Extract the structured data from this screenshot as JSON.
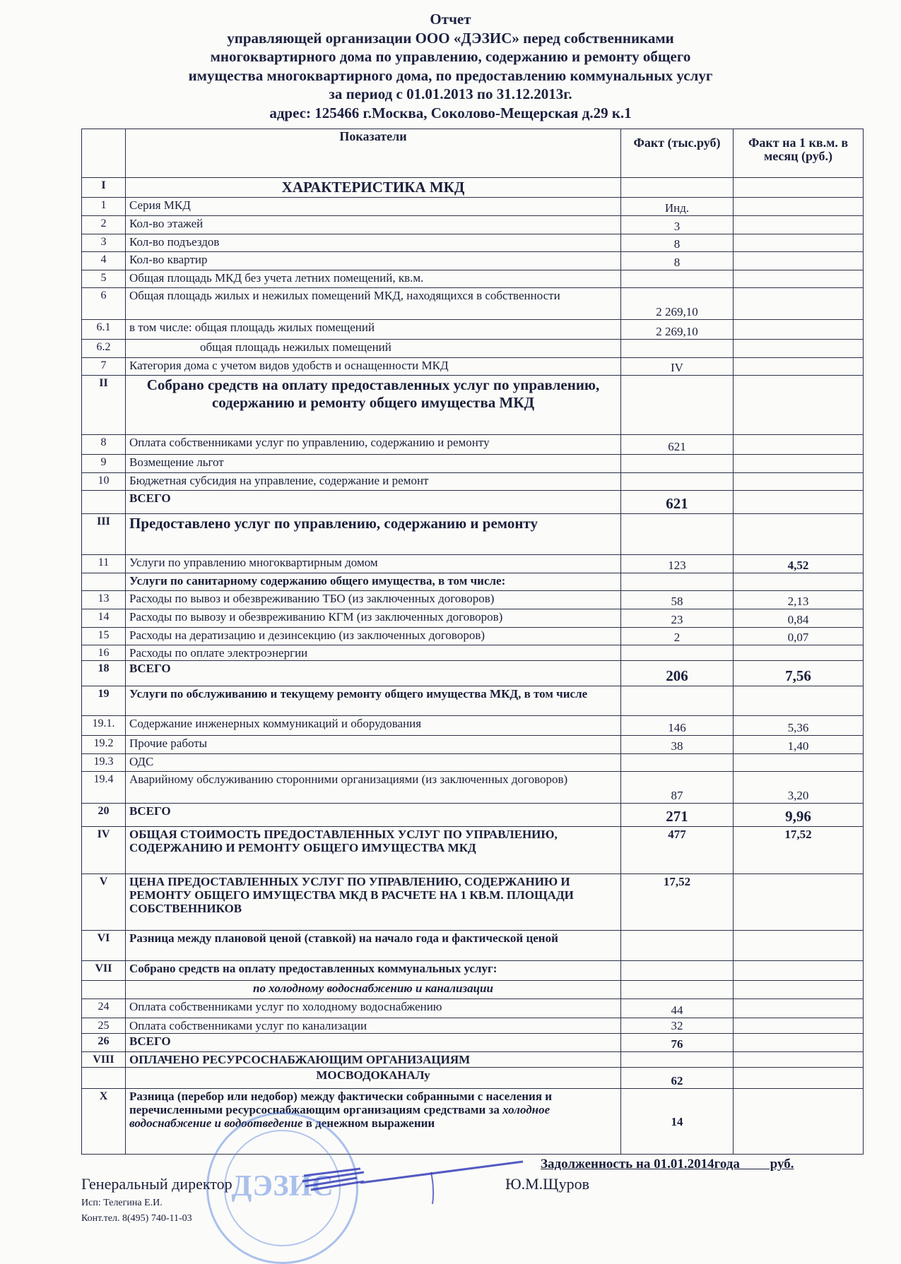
{
  "header": {
    "title": "Отчет",
    "lines": [
      "управляющей организации ООО «ДЭЗИС» перед собственниками",
      "многоквартирного дома  по управлению, содержанию и ремонту общего",
      "имущества многоквартирного дома, по предоставлению коммунальных услуг",
      "за период  с 01.01.2013 по 31.12.2013г.",
      "адрес: 125466 г.Москва, Соколово-Мещерская д.29 к.1"
    ]
  },
  "table": {
    "columns": [
      "",
      "Показатели",
      "Факт (тыс.руб)",
      "Факт на 1 кв.м. в месяц (руб.)"
    ],
    "rows": [
      {
        "num": "I",
        "label": "ХАРАКТЕРИСТИКА МКД",
        "fact": "",
        "per_m2": ""
      },
      {
        "num": "1",
        "label": "Серия МКД",
        "fact": "Инд.",
        "per_m2": ""
      },
      {
        "num": "2",
        "label": "Кол-во этажей",
        "fact": "3",
        "per_m2": ""
      },
      {
        "num": "3",
        "label": "Кол-во подъездов",
        "fact": "8",
        "per_m2": ""
      },
      {
        "num": "4",
        "label": "Кол-во квартир",
        "fact": "8",
        "per_m2": ""
      },
      {
        "num": "5",
        "label": "Общая площадь МКД без учета летних помещений, кв.м.",
        "fact": "",
        "per_m2": ""
      },
      {
        "num": "6",
        "label": "Общая площадь жилых и нежилых помещений МКД, находящихся в собственности",
        "fact": "2 269,10",
        "per_m2": ""
      },
      {
        "num": "6.1",
        "label": "в том числе: общая площадь жилых помещений",
        "fact": "2 269,10",
        "per_m2": ""
      },
      {
        "num": "6.2",
        "label": "общая площадь нежилых помещений",
        "fact": "",
        "per_m2": ""
      },
      {
        "num": "7",
        "label": "Категория дома с учетом видов удобств и оснащенности МКД",
        "fact": "IV",
        "per_m2": ""
      },
      {
        "num": "II",
        "label": "Собрано средств на оплату предоставленных услуг по управлению, содержанию и ремонту общего имущества МКД",
        "fact": "",
        "per_m2": ""
      },
      {
        "num": "8",
        "label": "Оплата собственниками услуг по управлению, содержанию и ремонту",
        "fact": "621",
        "per_m2": ""
      },
      {
        "num": "9",
        "label": "Возмещение льгот",
        "fact": "",
        "per_m2": ""
      },
      {
        "num": "10",
        "label": "Бюджетная субсидия на управление, содержание и ремонт",
        "fact": "",
        "per_m2": ""
      },
      {
        "num": "",
        "label": "ВСЕГО",
        "fact": "621",
        "per_m2": ""
      },
      {
        "num": "III",
        "label": "Предоставлено услуг по управлению, содержанию и ремонту",
        "fact": "",
        "per_m2": ""
      },
      {
        "num": "11",
        "label": "Услуги по управлению многоквартирным домом",
        "fact": "123",
        "per_m2": "4,52"
      },
      {
        "num": "",
        "label": "Услуги по санитарному содержанию общего имущества, в том числе:",
        "fact": "",
        "per_m2": ""
      },
      {
        "num": "13",
        "label": "Расходы по вывоз и обезвреживанию ТБО (из заключенных договоров)",
        "fact": "58",
        "per_m2": "2,13"
      },
      {
        "num": "14",
        "label": "Расходы по вывозу и обезвреживанию КГМ (из заключенных договоров)",
        "fact": "23",
        "per_m2": "0,84"
      },
      {
        "num": "15",
        "label": "Расходы на  дератизацию и дезинсекцию (из заключенных договоров)",
        "fact": "2",
        "per_m2": "0,07"
      },
      {
        "num": "16",
        "label": "Расходы по оплате электроэнергии",
        "fact": "",
        "per_m2": ""
      },
      {
        "num": "18",
        "label": "ВСЕГО",
        "fact": "206",
        "per_m2": "7,56"
      },
      {
        "num": "19",
        "label": "Услуги по обслуживанию и текущему ремонту общего имущества МКД, в том числе",
        "fact": "",
        "per_m2": ""
      },
      {
        "num": "19.1.",
        "label": "Содержание инженерных коммуникаций и оборудования",
        "fact": "146",
        "per_m2": "5,36"
      },
      {
        "num": "19.2",
        "label": "Прочие работы",
        "fact": "38",
        "per_m2": "1,40"
      },
      {
        "num": "19.3",
        "label": "ОДС",
        "fact": "",
        "per_m2": ""
      },
      {
        "num": "19.4",
        "label": "Аварийному обслуживанию сторонними организациями (из заключенных договоров)",
        "fact": "87",
        "per_m2": "3,20"
      },
      {
        "num": "20",
        "label": "ВСЕГО",
        "fact": "271",
        "per_m2": "9,96"
      },
      {
        "num": "IV",
        "label": "ОБЩАЯ СТОИМОСТЬ ПРЕДОСТАВЛЕННЫХ УСЛУГ ПО УПРАВЛЕНИЮ, СОДЕРЖАНИЮ И РЕМОНТУ ОБЩЕГО ИМУЩЕСТВА МКД",
        "fact": "477",
        "per_m2": "17,52"
      },
      {
        "num": "V",
        "label": "ЦЕНА ПРЕДОСТАВЛЕННЫХ УСЛУГ ПО УПРАВЛЕНИЮ, СОДЕРЖАНИЮ И РЕМОНТУ ОБЩЕГО ИМУЩЕСТВА МКД В РАСЧЕТЕ НА 1 КВ.М. ПЛОЩАДИ СОБСТВЕННИКОВ",
        "fact": "17,52",
        "per_m2": ""
      },
      {
        "num": "VI",
        "label": "Разница между плановой ценой (ставкой) на начало года и фактической ценой",
        "fact": "",
        "per_m2": ""
      },
      {
        "num": "VII",
        "label": "Собрано средств на оплату предоставленных коммунальных услуг:",
        "fact": "",
        "per_m2": ""
      },
      {
        "num": "",
        "label": "по холодному водоснабжению и канализации",
        "fact": "",
        "per_m2": ""
      },
      {
        "num": "24",
        "label": "Оплата собственниками услуг по холодному водоснабжению",
        "fact": "44",
        "per_m2": ""
      },
      {
        "num": "25",
        "label": "Оплата собственниками услуг по канализации",
        "fact": "32",
        "per_m2": ""
      },
      {
        "num": "26",
        "label": "ВСЕГО",
        "fact": "76",
        "per_m2": ""
      },
      {
        "num": "VIII",
        "label": "ОПЛАЧЕНО  РЕСУРСОСНАБЖАЮЩИМ ОРГАНИЗАЦИЯМ",
        "fact": "",
        "per_m2": ""
      },
      {
        "num": "",
        "label": "МОСВОДОКАНАЛу",
        "fact": "62",
        "per_m2": ""
      },
      {
        "num": "X",
        "label": "Разница (перебор или недобор) между фактически собранными с населения и перечисленными ресурсоснабжающим организациям средствами за ",
        "label_italic": "холодное водоснабжение и водоотведение",
        "label_post": " в денежном выражении",
        "fact": "14",
        "per_m2": ""
      }
    ]
  },
  "footer": {
    "debt": "Задолженность на 01.01.2014года         руб.",
    "position": "Генеральный директор",
    "signatory": "Ю.М.Щуров",
    "executor": "Исп: Телегина Е.И.",
    "phone": "Конт.тел. 8(495) 740-11-03",
    "stamp_text": "\"ДЭЗИС\""
  }
}
